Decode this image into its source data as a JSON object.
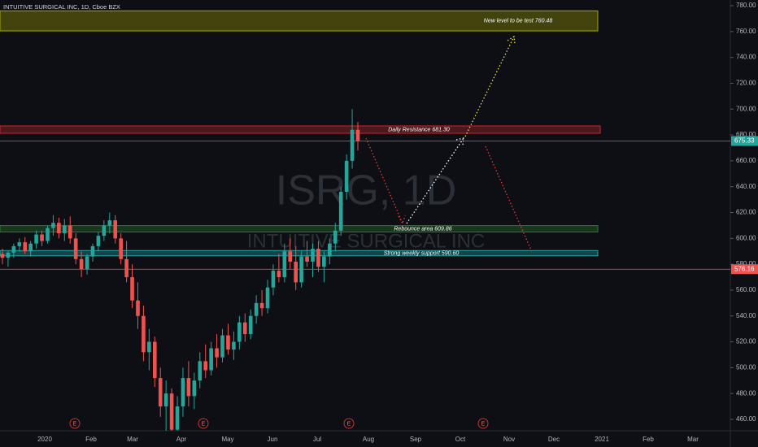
{
  "header": {
    "title": "INTUITIVE SURGICAL INC, 1D, Cboe BZX"
  },
  "chart_data": {
    "type": "candlestick",
    "watermark": {
      "symbol": "ISRG, 1D",
      "name": "INTUITIVE SURGICAL INC"
    },
    "candles": {
      "open": [
        588,
        585,
        589,
        594,
        597,
        590,
        596,
        603,
        598,
        608,
        612,
        604,
        610,
        600,
        584,
        576,
        586,
        594,
        602,
        610,
        614,
        600,
        584,
        570,
        552,
        540,
        512,
        520,
        492,
        470,
        480,
        452,
        470,
        492,
        478,
        490,
        505,
        498,
        515,
        508,
        525,
        514,
        520,
        535,
        526,
        540,
        550,
        546,
        562,
        575,
        570,
        590,
        582,
        566,
        586,
        582,
        592,
        578,
        586,
        596,
        606,
        636,
        660,
        684
      ],
      "high": [
        592,
        590,
        596,
        600,
        601,
        598,
        606,
        606,
        610,
        618,
        616,
        615,
        617,
        604,
        590,
        588,
        596,
        605,
        614,
        620,
        618,
        604,
        598,
        580,
        566,
        548,
        530,
        524,
        500,
        490,
        484,
        478,
        500,
        505,
        496,
        512,
        518,
        520,
        526,
        530,
        534,
        528,
        540,
        542,
        545,
        556,
        560,
        568,
        580,
        588,
        596,
        600,
        594,
        590,
        598,
        596,
        598,
        590,
        600,
        612,
        640,
        665,
        700,
        690
      ],
      "low": [
        580,
        578,
        585,
        590,
        588,
        586,
        592,
        594,
        596,
        602,
        600,
        598,
        596,
        580,
        570,
        572,
        582,
        590,
        598,
        604,
        596,
        580,
        566,
        546,
        530,
        505,
        498,
        485,
        462,
        445,
        440,
        440,
        462,
        470,
        468,
        484,
        492,
        494,
        500,
        504,
        510,
        506,
        514,
        520,
        522,
        534,
        540,
        542,
        556,
        566,
        566,
        576,
        560,
        562,
        578,
        570,
        574,
        566,
        580,
        590,
        602,
        630,
        654,
        668
      ],
      "close": [
        585,
        589,
        594,
        597,
        590,
        596,
        603,
        598,
        608,
        612,
        604,
        610,
        600,
        584,
        576,
        586,
        594,
        602,
        610,
        614,
        600,
        584,
        570,
        552,
        540,
        512,
        520,
        492,
        470,
        480,
        452,
        470,
        492,
        478,
        490,
        505,
        498,
        515,
        508,
        525,
        514,
        520,
        535,
        526,
        540,
        550,
        546,
        562,
        575,
        570,
        590,
        582,
        566,
        586,
        582,
        592,
        578,
        586,
        596,
        606,
        636,
        660,
        684,
        675.33
      ]
    },
    "up_color": "#26a69a",
    "down_color": "#ef5350",
    "ylim": [
      451.2,
      784.4
    ],
    "yticks": [
      {
        "value": 460,
        "label": "460.00"
      },
      {
        "value": 480,
        "label": "480.00"
      },
      {
        "value": 500,
        "label": "500.00"
      },
      {
        "value": 520,
        "label": "520.00"
      },
      {
        "value": 540,
        "label": "540.00"
      },
      {
        "value": 560,
        "label": "560.00"
      },
      {
        "value": 580,
        "label": "580.00"
      },
      {
        "value": 600,
        "label": "600.00"
      },
      {
        "value": 620,
        "label": "620.00"
      },
      {
        "value": 640,
        "label": "640.00"
      },
      {
        "value": 660,
        "label": "660.00"
      },
      {
        "value": 680,
        "label": "680.00"
      },
      {
        "value": 700,
        "label": "700.00"
      },
      {
        "value": 720,
        "label": "720.00"
      },
      {
        "value": 740,
        "label": "740.00"
      },
      {
        "value": 760,
        "label": "760.00"
      },
      {
        "value": 780,
        "label": "780.00"
      }
    ],
    "xticks": [
      "2020",
      "Feb",
      "Mar",
      "Apr",
      "May",
      "Jun",
      "Jul",
      "Aug",
      "Sep",
      "Oct",
      "Nov",
      "Dec",
      "2021",
      "Feb",
      "Mar"
    ],
    "price_lines": [
      {
        "value": 675.33,
        "label": "675.33",
        "color": "#26a69a"
      },
      {
        "value": 576.16,
        "label": "576.16",
        "color": "#ef5350"
      }
    ],
    "zones": [
      {
        "label": "New level to be test 760.48",
        "top": 776,
        "bottom": 760.48,
        "color": "#a8a600"
      },
      {
        "label": "Daily Resistance 681.30",
        "top": 687,
        "bottom": 681.3,
        "color": "#c62828"
      },
      {
        "label": "Rebounce area 609.86",
        "top": 609.86,
        "bottom": 605,
        "color": "#2e7d32"
      },
      {
        "label": "Strong weekly support 590.60",
        "top": 590.6,
        "bottom": 586.5,
        "color": "#26a6a6"
      }
    ],
    "earnings": [
      "E",
      "E",
      "E",
      "E"
    ]
  }
}
